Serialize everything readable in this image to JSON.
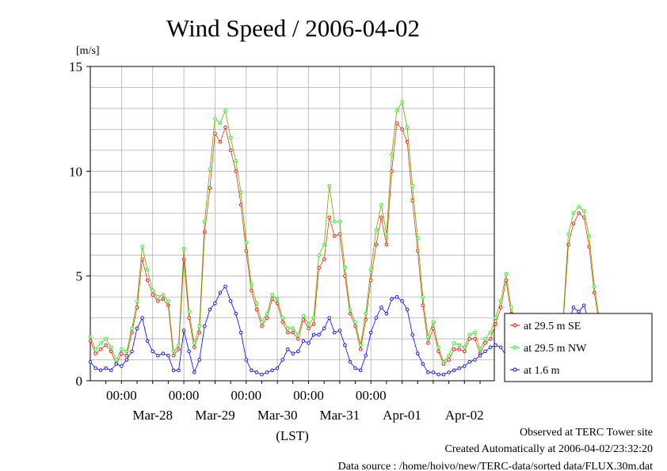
{
  "chart_data": {
    "type": "line",
    "title": "Wind Speed / 2006-04-02",
    "ylabel": "[m/s]",
    "xlabel": "(LST)",
    "ylim": [
      0,
      15
    ],
    "yticks": [
      0,
      5,
      10,
      15
    ],
    "xlim": [
      "2006-03-27T12:00",
      "2006-04-02T23:30"
    ],
    "xticks_time": [
      "00:00",
      "00:00",
      "00:00",
      "00:00",
      "00:00"
    ],
    "xticks_date": [
      "Mar-28",
      "Mar-29",
      "Mar-30",
      "Mar-31",
      "Apr-01",
      "Apr-02"
    ],
    "grid": true,
    "legend_position": "right",
    "series": [
      {
        "name": "at 29.5 m SE",
        "color": "#ff0000",
        "marker": "circle",
        "x_start": "2006-03-27T12:00",
        "step_hours": 2,
        "values": [
          1.9,
          1.3,
          1.5,
          1.7,
          1.4,
          0.8,
          1.3,
          1.2,
          2.3,
          3.5,
          5.8,
          4.8,
          4.1,
          3.8,
          3.9,
          3.6,
          1.2,
          1.5,
          5.8,
          3.0,
          1.6,
          2.3,
          7.1,
          9.2,
          11.8,
          11.4,
          12.1,
          11.0,
          10.0,
          8.4,
          6.2,
          4.3,
          3.4,
          2.6,
          3.0,
          3.9,
          3.7,
          2.8,
          2.3,
          2.3,
          2.0,
          2.9,
          2.5,
          2.7,
          5.4,
          5.8,
          7.8,
          6.9,
          7.0,
          5.0,
          3.2,
          2.6,
          1.5,
          2.9,
          4.8,
          6.5,
          7.8,
          6.5,
          10.0,
          12.3,
          12.0,
          11.4,
          8.6,
          6.2,
          3.6,
          1.8,
          2.5,
          1.4,
          0.8,
          1.0,
          1.5,
          1.5,
          1.4,
          2.0,
          2.0,
          1.3,
          1.8,
          2.0,
          2.7,
          3.5,
          4.8,
          3.2,
          2.4,
          1.9,
          2.0,
          1.8,
          1.4,
          1.5,
          1.8,
          1.5,
          2.8,
          2.8,
          6.5,
          7.5,
          8.0,
          7.8,
          6.4,
          4.2,
          2.6,
          2.5
        ]
      },
      {
        "name": "at 29.5 m NW",
        "color": "#00ff00",
        "marker": "circle",
        "x_start": "2006-03-27T12:00",
        "step_hours": 2,
        "values": [
          2.1,
          1.5,
          1.8,
          2.0,
          1.6,
          1.0,
          1.5,
          1.4,
          2.5,
          3.8,
          6.4,
          5.3,
          4.3,
          4.0,
          4.1,
          3.8,
          1.4,
          1.7,
          6.3,
          3.3,
          1.8,
          2.6,
          7.6,
          10.1,
          12.5,
          12.3,
          12.9,
          11.6,
          10.5,
          9.0,
          6.6,
          4.6,
          3.7,
          2.8,
          3.2,
          4.1,
          3.9,
          3.0,
          2.5,
          2.5,
          2.2,
          3.1,
          2.7,
          3.0,
          6.0,
          6.5,
          9.3,
          7.6,
          7.6,
          5.4,
          3.4,
          2.8,
          1.7,
          3.2,
          5.3,
          7.2,
          8.4,
          7.0,
          10.8,
          12.9,
          13.3,
          12.1,
          9.3,
          6.8,
          4.0,
          2.1,
          2.8,
          1.6,
          0.9,
          1.2,
          1.8,
          1.7,
          1.6,
          2.2,
          2.3,
          1.5,
          2.0,
          2.3,
          3.0,
          3.8,
          5.1,
          3.5,
          2.6,
          2.1,
          2.2,
          2.0,
          1.6,
          1.7,
          2.0,
          1.7,
          3.0,
          3.0,
          7.0,
          8.0,
          8.3,
          8.1,
          6.9,
          4.5,
          2.9,
          2.7
        ]
      },
      {
        "name": "at 1.6 m",
        "color": "#0000ff",
        "marker": "circle",
        "x_start": "2006-03-27T12:00",
        "step_hours": 2,
        "values": [
          0.9,
          0.6,
          0.5,
          0.6,
          0.5,
          0.8,
          0.7,
          1.0,
          1.4,
          2.5,
          3.0,
          1.9,
          1.4,
          1.2,
          1.3,
          1.2,
          0.5,
          0.5,
          2.4,
          1.4,
          0.4,
          1.0,
          2.6,
          3.4,
          3.7,
          4.2,
          4.5,
          3.8,
          3.2,
          2.3,
          1.0,
          0.5,
          0.4,
          0.3,
          0.4,
          0.5,
          0.6,
          1.0,
          1.5,
          1.3,
          1.4,
          1.9,
          1.8,
          2.2,
          2.2,
          2.5,
          3.0,
          2.3,
          2.4,
          1.7,
          0.9,
          0.6,
          0.5,
          1.2,
          2.3,
          3.0,
          3.5,
          3.2,
          3.9,
          4.0,
          3.8,
          3.4,
          2.2,
          1.3,
          0.8,
          0.4,
          0.4,
          0.3,
          0.3,
          0.4,
          0.5,
          0.6,
          0.7,
          0.9,
          1.0,
          1.2,
          1.4,
          1.6,
          1.7,
          1.6,
          1.2,
          0.5,
          0.4,
          0.5,
          0.6,
          0.7,
          0.8,
          1.0,
          1.1,
          1.2,
          1.4,
          1.9,
          2.8,
          3.5,
          3.3,
          3.6,
          2.8,
          1.3,
          1.0,
          0.5
        ]
      }
    ]
  },
  "footer": {
    "line1": "Observed at TERC Tower site",
    "line2": "Created Automatically at 2006-04-02/23:32:20",
    "line3": "Data source : /home/hoivo/new/TERC-data/sorted  data/FLUX.30m.dat"
  }
}
